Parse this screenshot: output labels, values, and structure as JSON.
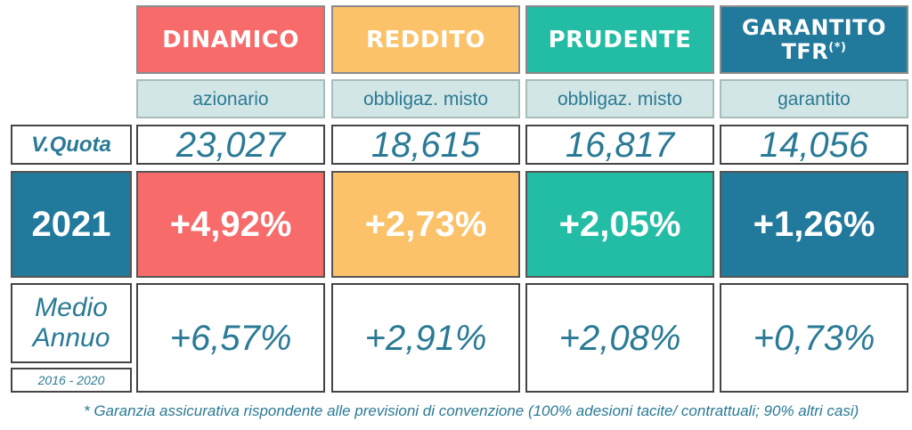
{
  "colors": {
    "dinamico": "#f76b6b",
    "reddito": "#fbc26a",
    "prudente": "#22bda4",
    "garantito": "#21799b",
    "label_bg": "#d3e6e6",
    "text": "#2a7a95"
  },
  "funds": [
    {
      "name": "DINAMICO",
      "type": "azionario",
      "quota": "23,027",
      "y2021": "+4,92%",
      "avg": "+6,57%"
    },
    {
      "name": "REDDITO",
      "type": "obbligaz. misto",
      "quota": "18,615",
      "y2021": "+2,73%",
      "avg": "+2,91%"
    },
    {
      "name": "PRUDENTE",
      "type": "obbligaz. misto",
      "quota": "16,817",
      "y2021": "+2,05%",
      "avg": "+2,08%"
    },
    {
      "name_line1": "GARANTITO",
      "name_line2": "TFR",
      "name_mark": "(*)",
      "type": "garantito",
      "quota": "14,056",
      "y2021": "+1,26%",
      "avg": "+0,73%"
    }
  ],
  "rows": {
    "quota_label": "V.Quota",
    "year_label": "2021",
    "avg_label_line1": "Medio",
    "avg_label_line2": "Annuo",
    "avg_range": "2016 - 2020"
  },
  "footnote": "* Garanzia assicurativa rispondente alle previsioni di convenzione (100% adesioni tacite/ contrattuali; 90% altri casi)"
}
